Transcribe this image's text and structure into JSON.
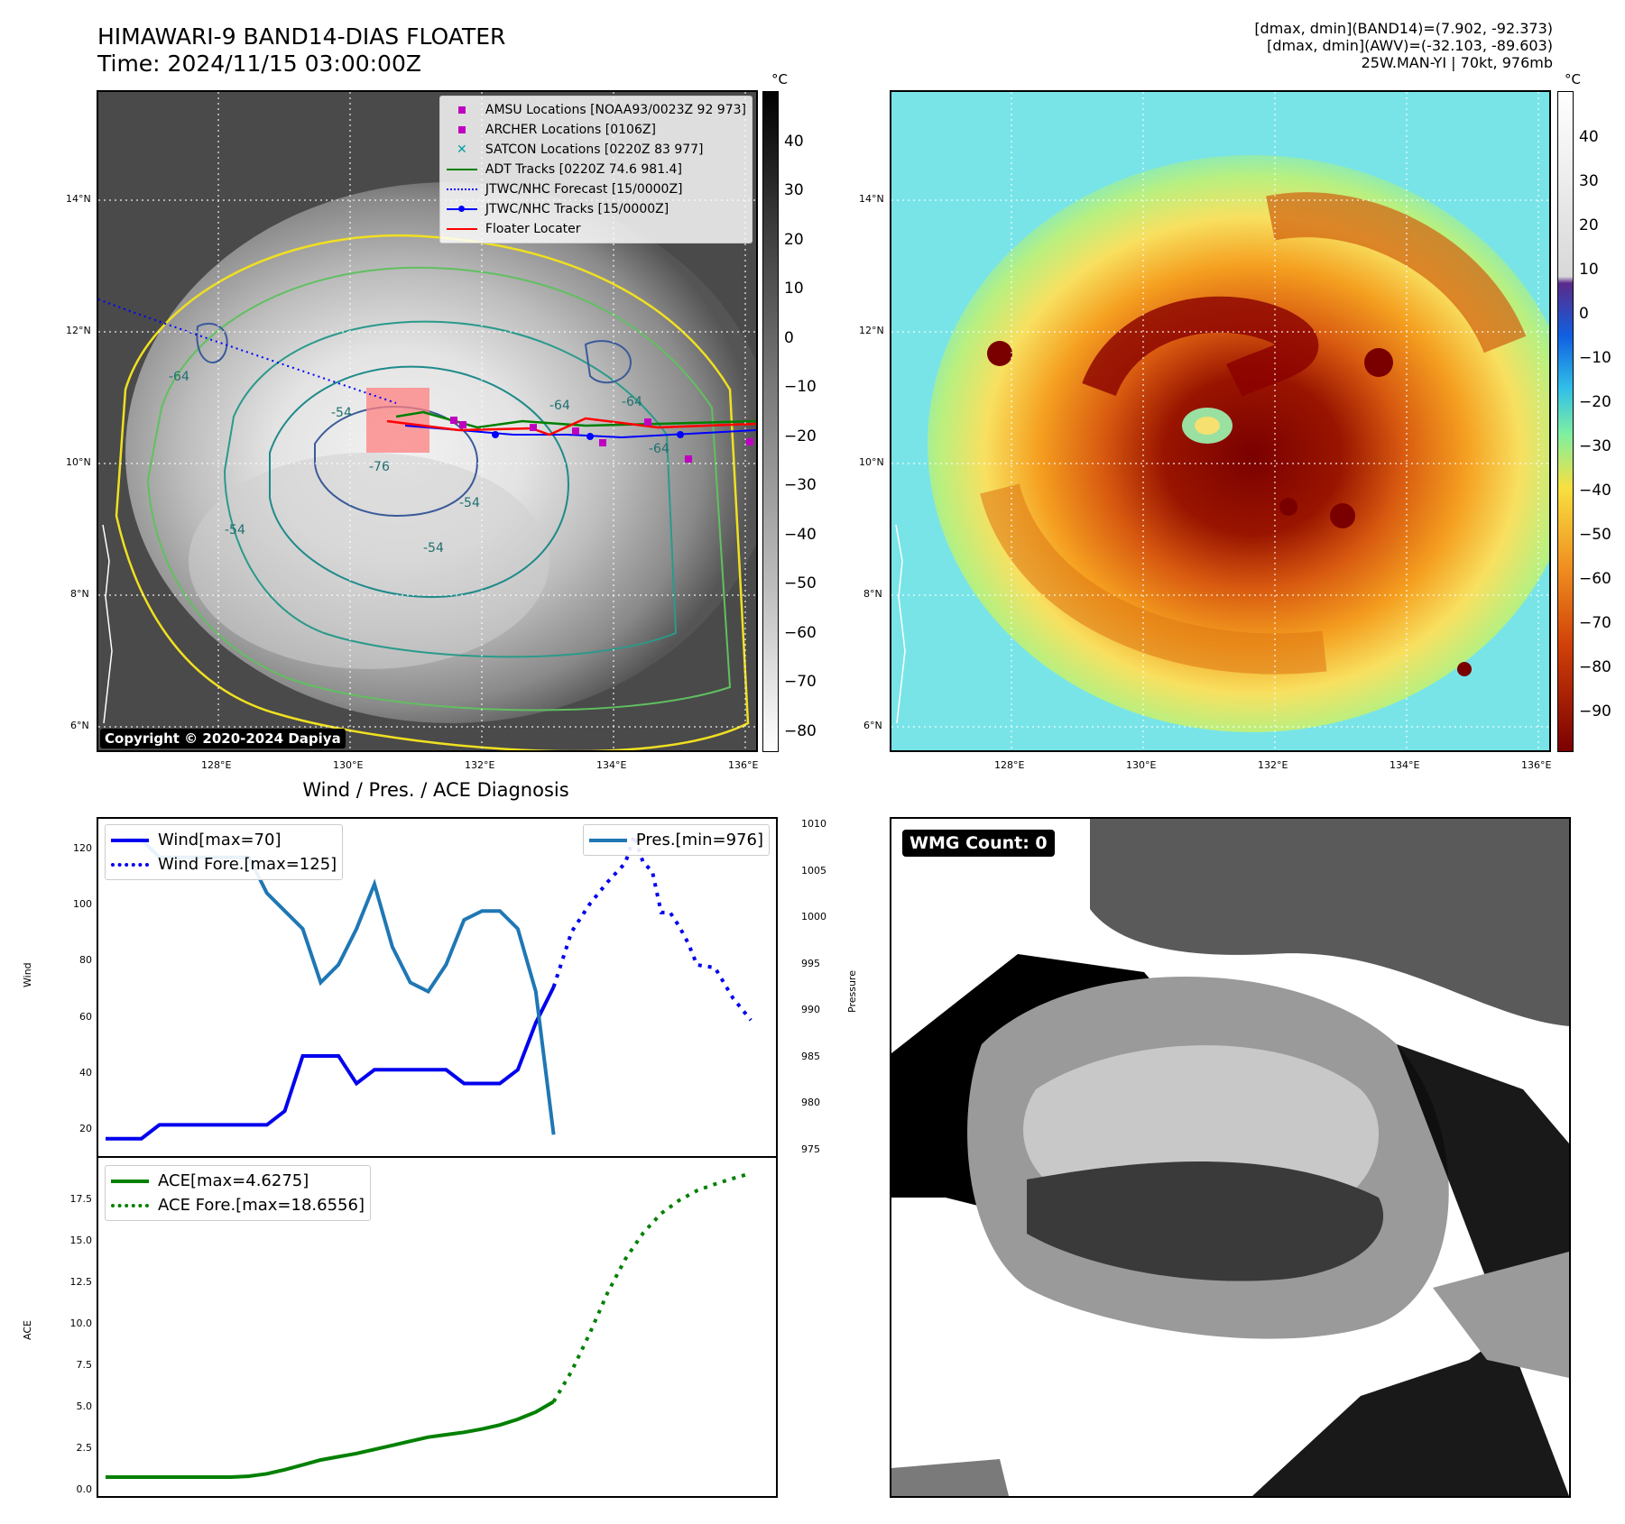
{
  "header": {
    "title_line1": "HIMAWARI-9 BAND14-DIAS FLOATER",
    "title_line2": "Time: 2024/11/15 03:00:00Z",
    "info_line1": "[dmax, dmin](BAND14)=(7.902, -92.373)",
    "info_line2": "[dmax, dmin](AWV)=(-32.103, -89.603)",
    "info_line3": "25W.MAN-YI | 70kt, 976mb"
  },
  "map": {
    "lat_labels": [
      "14°N",
      "12°N",
      "10°N",
      "8°N",
      "6°N"
    ],
    "lon_labels": [
      "128°E",
      "130°E",
      "132°E",
      "134°E",
      "136°E"
    ],
    "copyright": "Copyright © 2020-2024 Dapiya",
    "contour_labels": [
      "-54",
      "-64",
      "-76",
      "-64",
      "-54",
      "-64",
      "-64",
      "-54",
      "-54"
    ]
  },
  "legend": [
    {
      "label": "AMSU Locations [NOAA93/0023Z 92 973]",
      "color": "#c000c0",
      "marker": "square"
    },
    {
      "label": "ARCHER Locations [0106Z]",
      "color": "#c000c0",
      "marker": "square"
    },
    {
      "label": "SATCON Locations [0220Z 83 977]",
      "color": "#00a0a0",
      "marker": "x"
    },
    {
      "label": "ADT Tracks [0220Z 74.6 981.4]",
      "color": "#008000",
      "marker": "line"
    },
    {
      "label": "JTWC/NHC Forecast [15/0000Z]",
      "color": "#0000ff",
      "marker": "dotted"
    },
    {
      "label": "JTWC/NHC Tracks [15/0000Z]",
      "color": "#0000ff",
      "marker": "linedot"
    },
    {
      "label": "Floater Locater",
      "color": "#ff0000",
      "marker": "line"
    }
  ],
  "colorbar_gray": {
    "unit": "°C",
    "ticks": [
      "40",
      "30",
      "20",
      "10",
      "0",
      "−10",
      "−20",
      "−30",
      "−40",
      "−50",
      "−60",
      "−70",
      "−80"
    ]
  },
  "colorbar_color": {
    "unit": "°C",
    "ticks": [
      "40",
      "30",
      "20",
      "10",
      "0",
      "−10",
      "−20",
      "−30",
      "−40",
      "−50",
      "−60",
      "−70",
      "−80",
      "−90"
    ]
  },
  "diag": {
    "title": "Wind / Pres. / ACE Diagnosis",
    "wmg_label": "WMG Count: 0"
  },
  "chart_data": [
    {
      "type": "line",
      "title": "Wind / Pres. / ACE Diagnosis",
      "ylabel": "Wind",
      "y2label": "Pressure",
      "ylim": [
        10,
        130
      ],
      "y2lim": [
        974,
        1011
      ],
      "yticks": [
        "120",
        "100",
        "80",
        "60",
        "40",
        "20"
      ],
      "y2ticks": [
        "1010",
        "1005",
        "1000",
        "995",
        "990",
        "985",
        "980",
        "975"
      ],
      "legend_left": [
        "Wind[max=70]",
        "Wind Fore.[max=125]"
      ],
      "legend_right": [
        "Pres.[min=976]"
      ],
      "series": [
        {
          "name": "Wind[max=70]",
          "axis": "left",
          "color": "#0000ee",
          "style": "solid",
          "x": [
            0,
            2,
            3,
            5,
            6,
            7,
            9,
            10,
            11,
            12,
            13,
            14,
            15,
            16,
            17,
            18,
            19,
            20,
            21,
            22,
            23,
            24,
            25
          ],
          "values": [
            15,
            15,
            20,
            20,
            20,
            20,
            20,
            25,
            45,
            45,
            45,
            35,
            40,
            40,
            40,
            40,
            40,
            35,
            35,
            35,
            40,
            57,
            70
          ]
        },
        {
          "name": "Wind Fore.[max=125]",
          "axis": "left",
          "color": "#0000ee",
          "style": "dotted",
          "x": [
            25,
            26,
            27,
            28,
            29,
            29.5,
            30,
            30.5,
            31,
            31.5,
            32,
            32.5,
            33,
            34,
            35,
            36
          ],
          "values": [
            70,
            90,
            100,
            108,
            115,
            125,
            115,
            112,
            97,
            97,
            92,
            86,
            78,
            77,
            66,
            58
          ]
        },
        {
          "name": "Pres.[min=976]",
          "axis": "right",
          "color": "#1f77b4",
          "style": "solid",
          "x": [
            1,
            2,
            3,
            4,
            5,
            6,
            7,
            8,
            9,
            10,
            11,
            12,
            13,
            14,
            15,
            16,
            17,
            18,
            19,
            20,
            21,
            22,
            23,
            24,
            25
          ],
          "values": [
            1009,
            1009,
            1007,
            1007,
            1007,
            1007,
            1007,
            1007,
            1003,
            1001,
            999,
            993,
            995,
            999,
            1004,
            997,
            993,
            992,
            995,
            1000,
            1001,
            1001,
            999,
            992,
            976
          ]
        }
      ]
    },
    {
      "type": "line",
      "ylabel": "ACE",
      "ylim": [
        -1,
        19.5
      ],
      "yticks": [
        "17.5",
        "15.0",
        "12.5",
        "10.0",
        "7.5",
        "5.0",
        "2.5",
        "0.0"
      ],
      "legend": [
        "ACE[max=4.6275]",
        "ACE Fore.[max=18.6556]"
      ],
      "series": [
        {
          "name": "ACE[max=4.6275]",
          "color": "#008000",
          "style": "solid",
          "x": [
            0,
            2,
            4,
            6,
            7,
            8,
            9,
            10,
            11,
            12,
            13,
            14,
            15,
            16,
            17,
            18,
            19,
            20,
            21,
            22,
            23,
            24,
            25
          ],
          "values": [
            0,
            0,
            0,
            0,
            0,
            0.05,
            0.2,
            0.45,
            0.75,
            1.05,
            1.25,
            1.45,
            1.7,
            1.95,
            2.2,
            2.45,
            2.6,
            2.75,
            2.95,
            3.2,
            3.55,
            4.0,
            4.63
          ]
        },
        {
          "name": "ACE Fore.[max=18.6556]",
          "color": "#008000",
          "style": "dotted",
          "x": [
            25,
            26,
            27,
            28,
            29,
            30,
            31,
            32,
            33,
            34,
            35,
            36
          ],
          "values": [
            4.63,
            6.5,
            8.8,
            11.3,
            13.4,
            15.0,
            16.2,
            17.0,
            17.6,
            18.0,
            18.35,
            18.66
          ]
        }
      ]
    }
  ]
}
